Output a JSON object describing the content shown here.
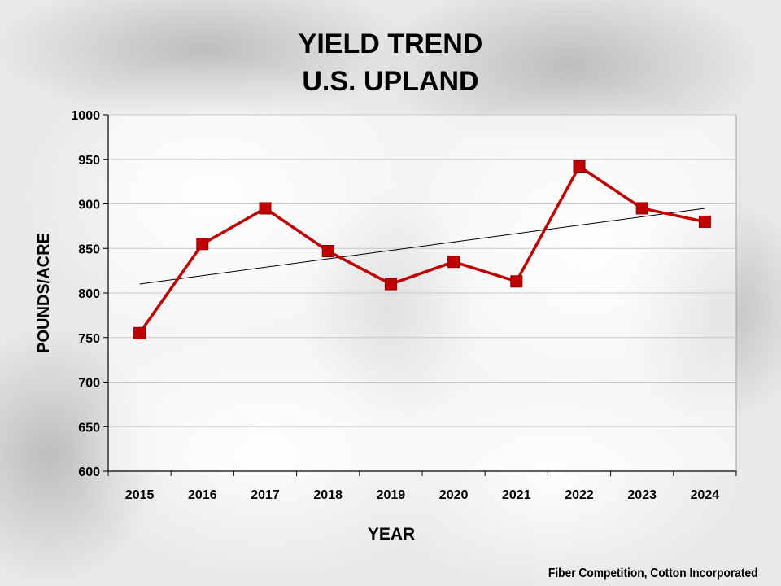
{
  "title_line1": "YIELD TREND",
  "title_line2": "U.S. UPLAND",
  "footer": "Fiber Competition, Cotton Incorporated",
  "colors": {
    "series": "#c00000",
    "trend": "#000000",
    "grid": "#c8c8c8",
    "plot_bg": "#ffffff"
  },
  "chart_data": {
    "type": "line",
    "title": "YIELD TREND U.S. UPLAND",
    "xlabel": "YEAR",
    "ylabel": "POUNDS/ACRE",
    "ylim": [
      600,
      1000
    ],
    "yticks": [
      600,
      650,
      700,
      750,
      800,
      850,
      900,
      950,
      1000
    ],
    "grid": true,
    "categories": [
      "2015",
      "2016",
      "2017",
      "2018",
      "2019",
      "2020",
      "2021",
      "2022",
      "2023",
      "2024"
    ],
    "series": [
      {
        "values": [
          755,
          855,
          895,
          847,
          810,
          835,
          813,
          942,
          895,
          880
        ],
        "marker": "square"
      }
    ],
    "trendline": {
      "start": 810,
      "end": 895
    }
  }
}
